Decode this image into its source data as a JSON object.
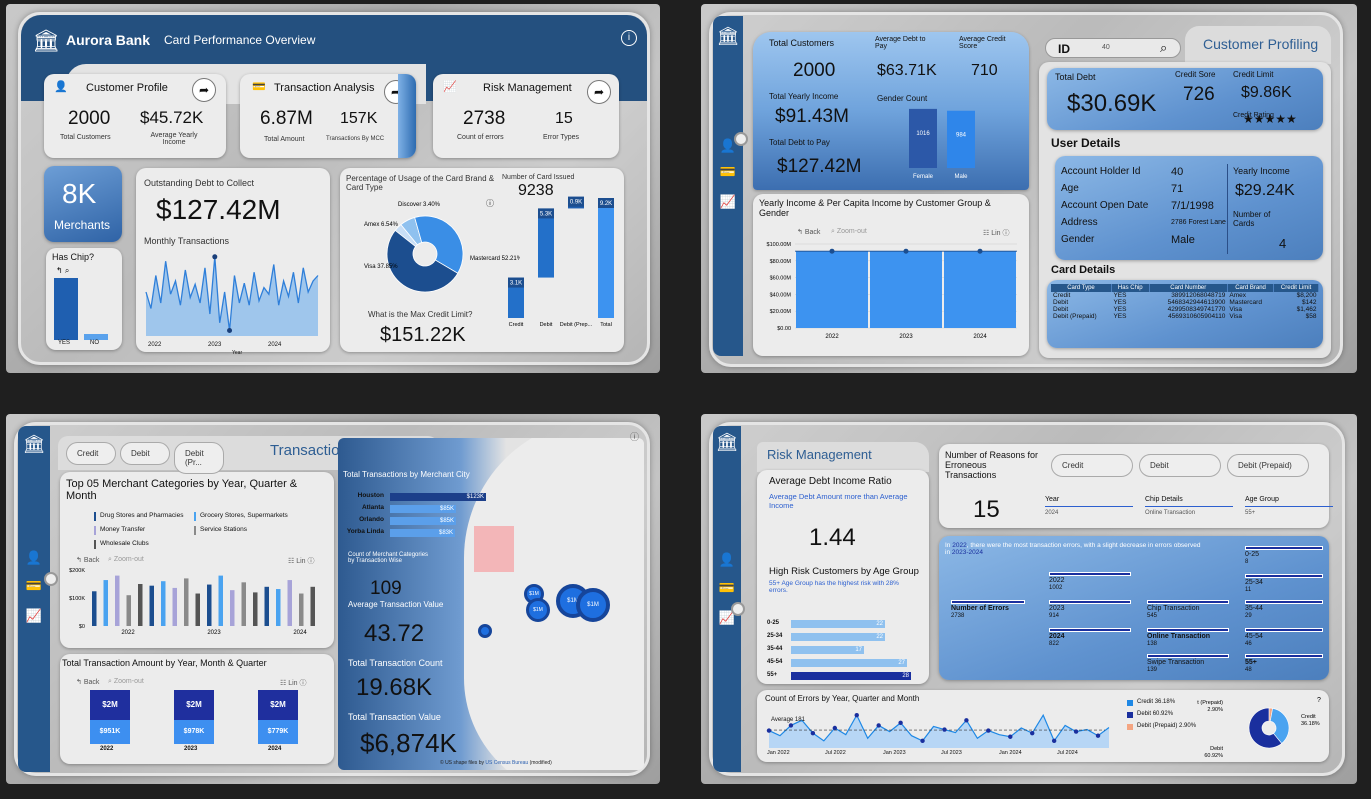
{
  "overview": {
    "bank_name": "Aurora Bank",
    "title": "Card Performance Overview",
    "customer_profile": {
      "label": "Customer Profile",
      "total": "2000",
      "total_label": "Total Customers",
      "income": "$45.72K",
      "income_label": "Average Yearly Income"
    },
    "transaction_analysis": {
      "label": "Transaction Analysis",
      "amount": "6.87M",
      "amount_label": "Total Amount",
      "mcc": "157K",
      "mcc_label": "Transactions By MCC"
    },
    "risk_management": {
      "label": "Risk Management",
      "errors": "2738",
      "errors_label": "Count of errors",
      "types": "15",
      "types_label": "Error Types"
    },
    "merchants_value": "8K",
    "merchants_label": "Merchants",
    "has_chip": {
      "title": "Has Chip?",
      "labels": [
        "YES",
        "NO"
      ],
      "values": [
        0.92,
        0.08
      ]
    },
    "debt_title": "Outstanding Debt to Collect",
    "debt_value": "$127.42M",
    "monthly_title": "Monthly Transactions",
    "monthly_years": [
      "2022",
      "2023",
      "2024"
    ],
    "monthly_axis_label": "Year",
    "monthly_series": [
      40,
      25,
      55,
      30,
      68,
      38,
      50,
      28,
      60,
      35,
      47,
      30,
      62,
      20,
      72,
      12,
      40,
      5,
      55,
      30,
      48,
      28,
      58,
      32,
      44,
      38,
      65,
      28,
      50,
      36,
      58,
      30,
      62,
      40,
      50,
      55
    ],
    "donut": {
      "title": "Percentage of Usage of the Card Brand & Card Type",
      "labels": [
        {
          "name": "Discover",
          "pct": "3.40%"
        },
        {
          "name": "Amex",
          "pct": "6.54%"
        },
        {
          "name": "Visa",
          "pct": "37.85%"
        },
        {
          "name": "Mastercard",
          "pct": "52.21%"
        }
      ],
      "values": [
        3.4,
        6.54,
        37.85,
        52.21
      ],
      "colors": [
        "#c9dff6",
        "#8fc1ef",
        "#3a8ee6",
        "#1c4e8f"
      ]
    },
    "max_credit_label": "What is the Max Credit Limit?",
    "max_credit_value": "$151.22K",
    "cards_issued": {
      "title": "Number of Card Issued",
      "total": "9238",
      "categories": [
        "Credit",
        "Debit",
        "Debit (Prep...",
        "Total"
      ],
      "values": [
        3.1,
        5.3,
        0.9,
        9.2
      ],
      "labels": [
        "3.1K",
        "5.3K",
        "0.9K",
        "9.2K"
      ]
    }
  },
  "profiling": {
    "title": "Customer Profiling",
    "id_label": "ID",
    "id_value": "40",
    "total_customers_label": "Total Customers",
    "total_customers": "2000",
    "avg_debt_label": "Average Debt to Pay",
    "avg_debt": "$63.71K",
    "avg_credit_label": "Average Credit Score",
    "avg_credit": "710",
    "yearly_income_label": "Total Yearly Income",
    "yearly_income": "$91.43M",
    "gender_count_label": "Gender Count",
    "gender": {
      "labels": [
        "Female",
        "Male"
      ],
      "values": [
        1016,
        984
      ],
      "value_labels": [
        "1016",
        "984"
      ]
    },
    "total_debt_label": "Total Debt to Pay",
    "total_debt": "$127.42M",
    "income_chart": {
      "title": "Yearly Income & Per Capita Income by Customer Group & Gender",
      "back": "Back",
      "zoom": "Zoom-out",
      "lin": "Lin",
      "yticks": [
        "$100.00M",
        "$80.00M",
        "$60.00M",
        "$40.00M",
        "$20.00M",
        "$0.00"
      ],
      "categories": [
        "2022",
        "2023",
        "2024"
      ],
      "values": [
        91.43,
        91.43,
        91.43
      ]
    },
    "user_total_debt_label": "Total Debt",
    "user_total_debt": "$30.69K",
    "credit_score_label": "Credit Sore",
    "credit_score": "726",
    "credit_limit_label": "Credit Limit",
    "credit_limit": "$9.86K",
    "credit_rating_label": "Credit Rating",
    "stars": "★★★★★",
    "user_details_title": "User Details",
    "details": [
      {
        "k": "Account Holder Id",
        "v": "40"
      },
      {
        "k": "Age",
        "v": "71"
      },
      {
        "k": "Account Open Date",
        "v": "7/1/1998"
      },
      {
        "k": "Address",
        "v": "2786 Forest Lane"
      },
      {
        "k": "Gender",
        "v": "Male"
      }
    ],
    "yearly_income_u_label": "Yearly Income",
    "yearly_income_u": "$29.24K",
    "num_cards_label": "Number of Cards",
    "num_cards": "4",
    "card_details_title": "Card Details",
    "card_table": {
      "headers": [
        "Card Type",
        "Has Chip",
        "Card Number",
        "Card Brand",
        "Credit Limit"
      ],
      "rows": [
        [
          "Credit",
          "YES",
          "389912068048719",
          "Amex",
          "$8,200"
        ],
        [
          "Debit",
          "YES",
          "5468342944613900",
          "Mastercard",
          "$142"
        ],
        [
          "Debit",
          "YES",
          "4299508349741770",
          "Visa",
          "$1,462"
        ],
        [
          "Debit (Prepaid)",
          "YES",
          "4569310605904110",
          "Visa",
          "$58"
        ]
      ]
    }
  },
  "transaction": {
    "title": "Transaction Analysis",
    "filters": [
      "Credit",
      "Debit",
      "Debit (Pr..."
    ],
    "top5_title": "Top 05 Merchant Categories by Year, Quarter & Month",
    "legend": [
      "Drug Stores and Pharmacies",
      "Grocery Stores, Supermarkets",
      "Money Transfer",
      "Service Stations",
      "Wholesale Clubs"
    ],
    "legend_colors": [
      "#1c4e8f",
      "#4aa3f0",
      "#a7a3d8",
      "#8a8a8a",
      "#555555"
    ],
    "back": "Back",
    "zoom": "Zoom-out",
    "lin": "Lin",
    "yticks": [
      "$200K",
      "$100K",
      "$0"
    ],
    "years": [
      "2022",
      "2023",
      "2024"
    ],
    "bars": [
      0.62,
      0.82,
      0.9,
      0.55,
      0.75,
      0.72,
      0.8,
      0.68,
      0.85,
      0.58,
      0.74,
      0.9,
      0.64,
      0.78,
      0.6,
      0.7,
      0.66,
      0.82,
      0.58,
      0.7
    ],
    "totals_title": "Total Transaction Amount by Year, Month & Quarter",
    "totals": [
      {
        "year": "2022",
        "top": "$2M",
        "bottom": "$951K"
      },
      {
        "year": "2023",
        "top": "$2M",
        "bottom": "$978K"
      },
      {
        "year": "2024",
        "top": "$2M",
        "bottom": "$779K"
      }
    ],
    "city_title": "Total Transactions by Merchant City",
    "cities": [
      {
        "name": "Houston",
        "label": "$123K",
        "value": 123
      },
      {
        "name": "Atlanta",
        "label": "$85K",
        "value": 85
      },
      {
        "name": "Orlando",
        "label": "$85K",
        "value": 85
      },
      {
        "name": "Yorba Linda",
        "label": "$83K",
        "value": 83
      }
    ],
    "mcc_label": "Count of Merchant Categories by Transaction Wise",
    "mcc_value": "109",
    "avg_label": "Average Transaction Value",
    "avg_value": "43.72",
    "count_label": "Total Transaction Count",
    "count_value": "19.68K",
    "value_label": "Total Transaction Value",
    "value_value": "$6,874K",
    "map_bubbles": [
      "$1M",
      "$1M",
      "$1M",
      "$1M"
    ],
    "attribution_prefix": "© US shape files by",
    "attribution_link": "US Census Bureau",
    "attribution_suffix": "(modified)"
  },
  "risk": {
    "title": "Risk Management",
    "ratio_title": "Average Debt Income Ratio",
    "ratio_sub": "Average Debt Amount more than Average Income",
    "ratio_value": "1.44",
    "age_title": "High Risk Customers by Age Group",
    "age_sub": "55+ Age Group has the highest risk with 28% errors.",
    "age_groups": [
      {
        "name": "0-25",
        "value": 22
      },
      {
        "name": "25-34",
        "value": 22
      },
      {
        "name": "35-44",
        "value": 17
      },
      {
        "name": "45-54",
        "value": 27
      },
      {
        "name": "55+",
        "value": 28
      }
    ],
    "reasons_label": "Number of Reasons for Erroneous Transactions",
    "reasons_value": "15",
    "filters": [
      "Credit",
      "Debit",
      "Debit (Prepaid)"
    ],
    "slicers": [
      {
        "label": "Year",
        "value": "2024"
      },
      {
        "label": "Chip Details",
        "value": "Online Transaction"
      },
      {
        "label": "Age Group",
        "value": "55+"
      }
    ],
    "tree_note_prefix": "In",
    "tree_note_year": "2022",
    "tree_note_mid": ", there were the most transaction errors, with a slight decrease in errors observed in",
    "tree_note_range": "2023-2024",
    "tree_root": {
      "label": "Number of Errors",
      "value": "2738"
    },
    "tree_years": [
      {
        "label": "2022",
        "value": "1002"
      },
      {
        "label": "2023",
        "value": "914"
      },
      {
        "label": "2024",
        "value": "822"
      }
    ],
    "tree_types": [
      {
        "label": "Chip Transaction",
        "value": "545"
      },
      {
        "label": "Online Transaction",
        "value": "138"
      },
      {
        "label": "Swipe Transaction",
        "value": "139"
      }
    ],
    "tree_ages": [
      {
        "label": "0-25",
        "value": "8"
      },
      {
        "label": "25-34",
        "value": "11"
      },
      {
        "label": "35-44",
        "value": "29"
      },
      {
        "label": "45-54",
        "value": "46"
      },
      {
        "label": "55+",
        "value": "48"
      }
    ],
    "errors_title": "Count of Errors by Year, Quarter and Month",
    "errors_avg": "Average 181",
    "errors_xticks": [
      "Jan 2022",
      "Jul 2022",
      "Jan 2023",
      "Jul 2023",
      "Jan 2024",
      "Jul 2024"
    ],
    "errors_series": [
      180,
      170,
      190,
      200,
      175,
      160,
      185,
      172,
      210,
      165,
      190,
      178,
      195,
      170,
      160,
      188,
      182,
      176,
      200,
      165,
      180,
      172,
      168,
      185,
      175,
      210,
      160,
      190,
      178,
      182,
      170,
      186
    ],
    "legend": [
      {
        "name": "Credit",
        "pct": "36.18%",
        "color": "#1e88e5"
      },
      {
        "name": "Debit",
        "pct": "60.92%",
        "color": "#1a2f9e"
      },
      {
        "name": "Debit (Prepaid)",
        "pct": "2.90%",
        "color": "#f4a582"
      }
    ],
    "donut_labels": [
      {
        "name": "Debit (Prepaid)",
        "pct": "2.90%"
      },
      {
        "name": "Credit",
        "pct": "36.18%"
      },
      {
        "name": "Debit",
        "pct": "60.92%"
      }
    ],
    "donut_values": [
      2.9,
      36.18,
      60.92
    ]
  }
}
